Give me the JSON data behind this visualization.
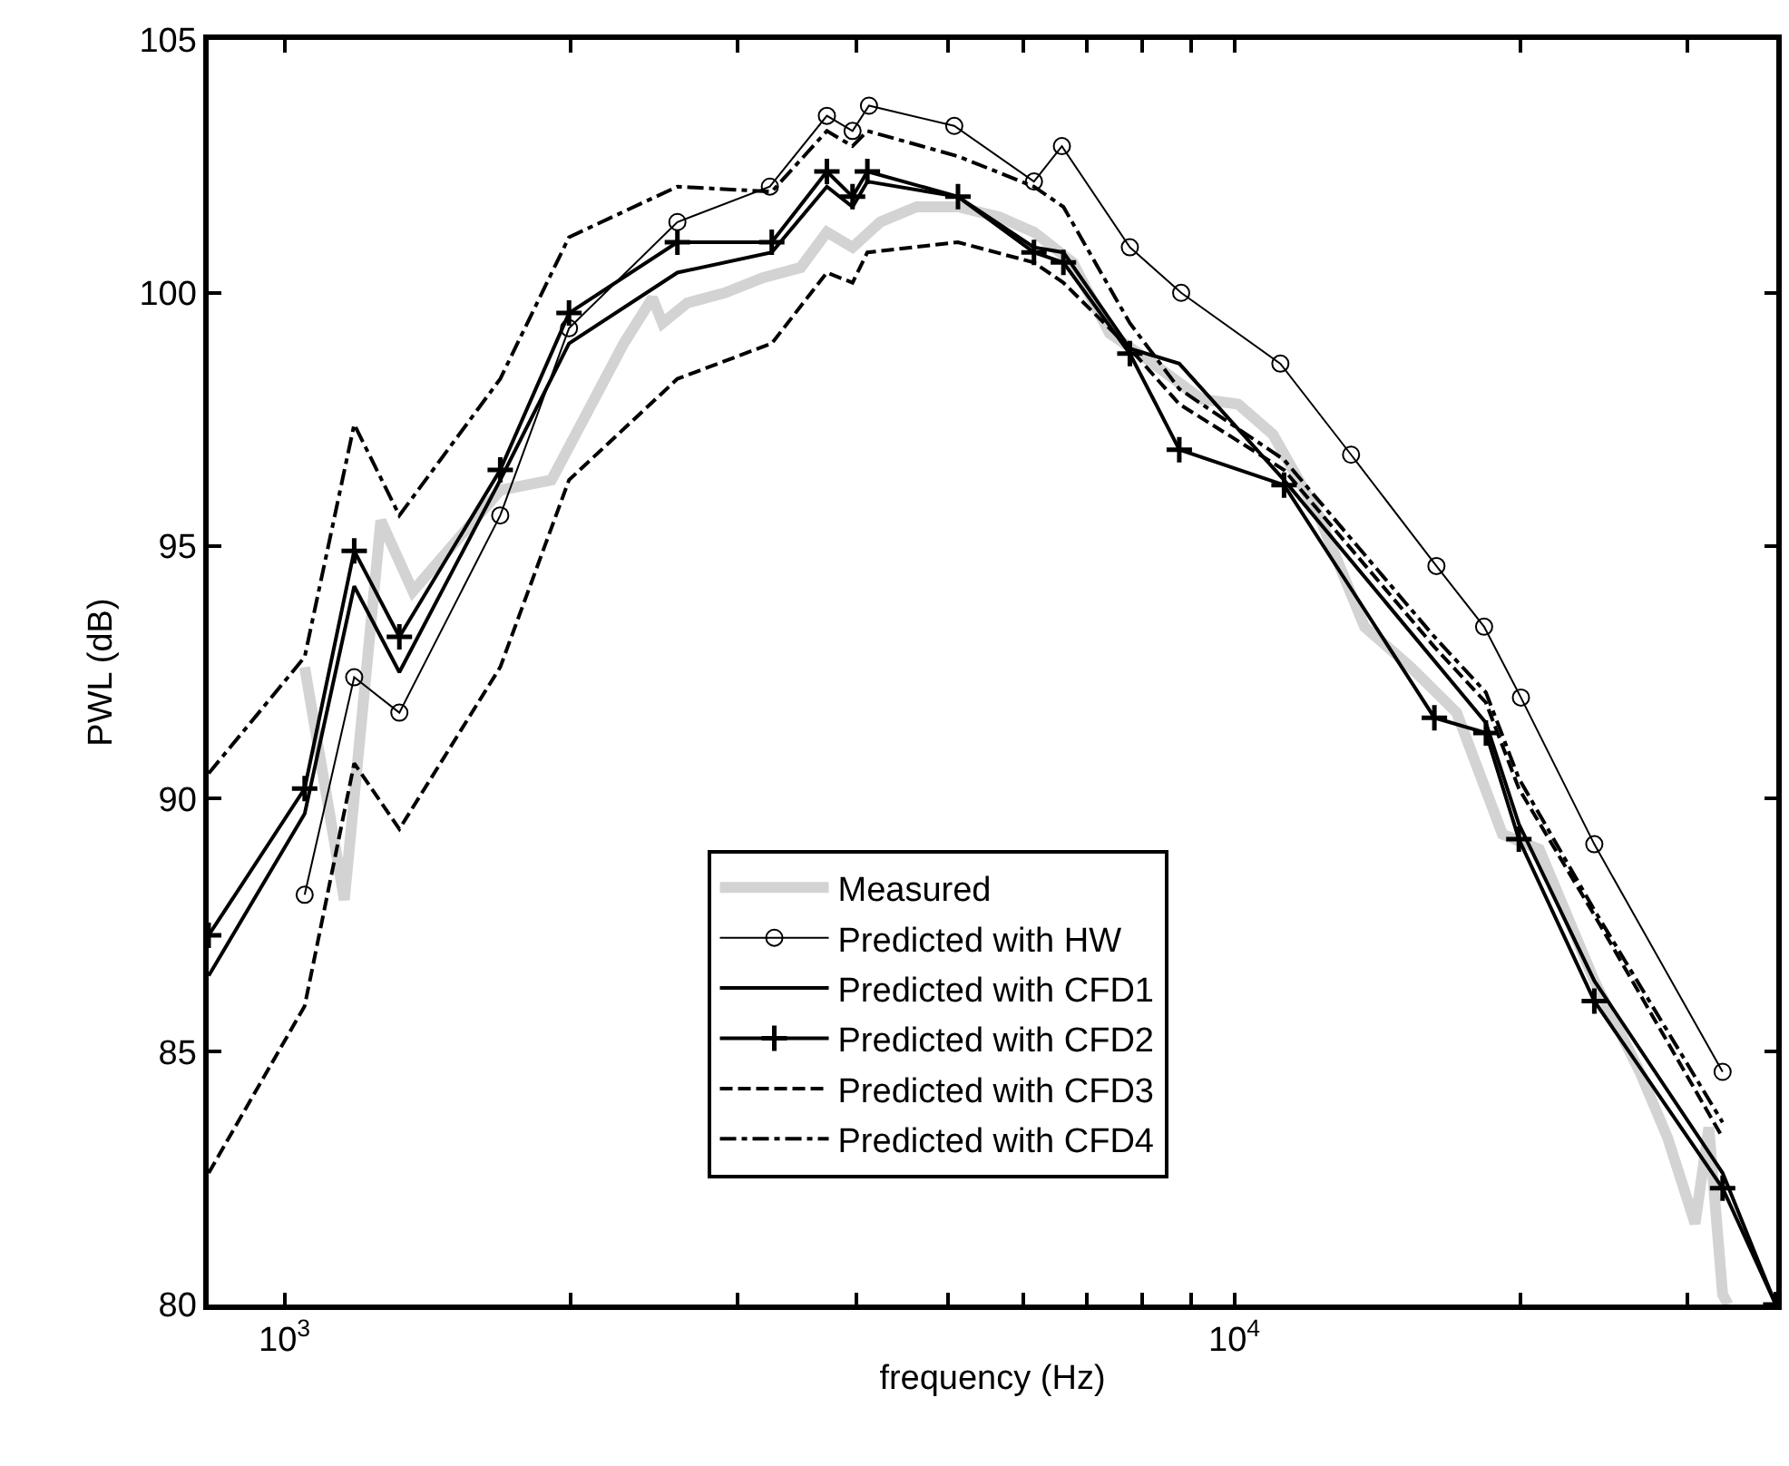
{
  "chart_data": {
    "type": "line",
    "xlabel": "frequency (Hz)",
    "ylabel": "PWL (dB)",
    "log": "x",
    "grid": false,
    "legend": "bottom",
    "xlim": [
      832,
      37200
    ],
    "ylim": [
      80,
      105
    ],
    "xticks": [
      {
        "value": 1000,
        "label": "10$^{3}$"
      },
      {
        "value": 2000,
        "label": null
      },
      {
        "value": 3000,
        "label": null
      },
      {
        "value": 4000,
        "label": null
      },
      {
        "value": 5000,
        "label": null
      },
      {
        "value": 6000,
        "label": null
      },
      {
        "value": 7000,
        "label": null
      },
      {
        "value": 8000,
        "label": null
      },
      {
        "value": 9000,
        "label": null
      },
      {
        "value": 10000,
        "label": "10$^{4}$"
      },
      {
        "value": 20000,
        "label": null
      },
      {
        "value": 30000,
        "label": null
      }
    ],
    "yticks": [
      80,
      85,
      90,
      95,
      100,
      105
    ],
    "series": [
      {
        "name": "Measured",
        "color": "#d3d3d3",
        "marker": "none",
        "line_style": "solid",
        "x": [
          1050,
          1156,
          1263,
          1365,
          1687,
          1910,
          2276,
          2440,
          2500,
          2655,
          2908,
          3188,
          3495,
          3724,
          3963,
          4238,
          4630,
          5117,
          5656,
          6152,
          6760,
          7390,
          8077,
          9230,
          10090,
          10980,
          12270,
          13710,
          15330,
          17140,
          19150,
          20940,
          23930,
          26720,
          28580,
          30550,
          31590,
          32660,
          33100
        ],
        "values": [
          92.6,
          88.0,
          95.5,
          94.1,
          96.1,
          96.3,
          99.0,
          99.9,
          99.4,
          99.8,
          100.0,
          100.3,
          100.5,
          101.2,
          100.9,
          101.4,
          101.7,
          101.7,
          101.5,
          101.2,
          100.6,
          99.2,
          98.7,
          97.9,
          97.8,
          97.2,
          95.6,
          93.4,
          92.6,
          91.7,
          89.3,
          89.0,
          86.4,
          84.6,
          83.3,
          81.6,
          83.5,
          80.2,
          80.0
        ]
      },
      {
        "name": "Predicted with HW",
        "color": "#000000",
        "marker": "circle",
        "line_style": "solid",
        "x": [
          1050,
          1184,
          1321,
          1687,
          1993,
          2592,
          3243,
          3724,
          3963,
          4124,
          5071,
          6152,
          6583,
          7762,
          8790,
          11180,
          13270,
          16320,
          18320,
          20030,
          23930,
          32660
        ],
        "values": [
          88.1,
          92.4,
          91.7,
          95.6,
          99.3,
          101.4,
          102.1,
          103.5,
          103.2,
          103.7,
          103.3,
          102.2,
          102.9,
          100.9,
          100.0,
          98.6,
          96.8,
          94.6,
          93.4,
          92.0,
          89.1,
          84.6
        ]
      },
      {
        "name": "Predicted with CFD1",
        "color": "#000000",
        "marker": "none",
        "line_style": "solid",
        "x": [
          832,
          1050,
          1184,
          1321,
          1687,
          1993,
          2592,
          3258,
          3724,
          3963,
          4108,
          5117,
          6152,
          6607,
          7762,
          8750,
          11280,
          18400,
          19930,
          23930,
          32660,
          37150
        ],
        "values": [
          86.5,
          89.7,
          94.2,
          92.5,
          96.3,
          99.0,
          100.4,
          100.8,
          102.1,
          101.7,
          102.2,
          101.9,
          100.9,
          100.8,
          98.9,
          98.6,
          96.3,
          91.5,
          89.5,
          86.4,
          82.6,
          80.0
        ]
      },
      {
        "name": "Predicted with CFD2",
        "color": "#000000",
        "marker": "cross",
        "line_style": "solid",
        "x": [
          832,
          1050,
          1184,
          1321,
          1687,
          1993,
          2592,
          3258,
          3724,
          3963,
          4108,
          5117,
          6152,
          6607,
          7762,
          8750,
          11280,
          16240,
          18400,
          19930,
          23930,
          32660,
          37150
        ],
        "values": [
          87.3,
          90.2,
          94.9,
          93.2,
          96.5,
          99.6,
          101.0,
          101.0,
          102.4,
          101.9,
          102.4,
          101.9,
          100.8,
          100.6,
          98.8,
          96.9,
          96.2,
          91.6,
          91.3,
          89.2,
          86.0,
          82.3,
          80.0
        ]
      },
      {
        "name": "Predicted with CFD3",
        "color": "#000000",
        "marker": "none",
        "line_style": "dashed",
        "x": [
          832,
          1050,
          1184,
          1321,
          1687,
          1993,
          2592,
          3258,
          3724,
          3963,
          4108,
          5117,
          6152,
          6607,
          7762,
          8750,
          11280,
          16240,
          18400,
          19930,
          23930,
          32660
        ],
        "values": [
          82.6,
          85.9,
          90.7,
          89.4,
          92.6,
          96.3,
          98.3,
          99.0,
          100.4,
          100.2,
          100.8,
          101.0,
          100.6,
          100.2,
          98.9,
          97.8,
          96.5,
          93.0,
          91.9,
          90.2,
          87.7,
          83.3
        ]
      },
      {
        "name": "Predicted with CFD4",
        "color": "#000000",
        "marker": "none",
        "line_style": "dashdot",
        "x": [
          832,
          1050,
          1184,
          1321,
          1687,
          1993,
          2592,
          3258,
          3724,
          3963,
          4108,
          5117,
          6152,
          6607,
          7762,
          8750,
          11280,
          16240,
          18400,
          19930,
          23930,
          32660
        ],
        "values": [
          90.5,
          92.8,
          97.4,
          95.6,
          98.3,
          101.1,
          102.1,
          102.0,
          103.2,
          102.9,
          103.2,
          102.7,
          102.1,
          101.7,
          99.4,
          98.1,
          96.7,
          93.2,
          92.1,
          90.4,
          87.8,
          83.6
        ]
      }
    ]
  }
}
